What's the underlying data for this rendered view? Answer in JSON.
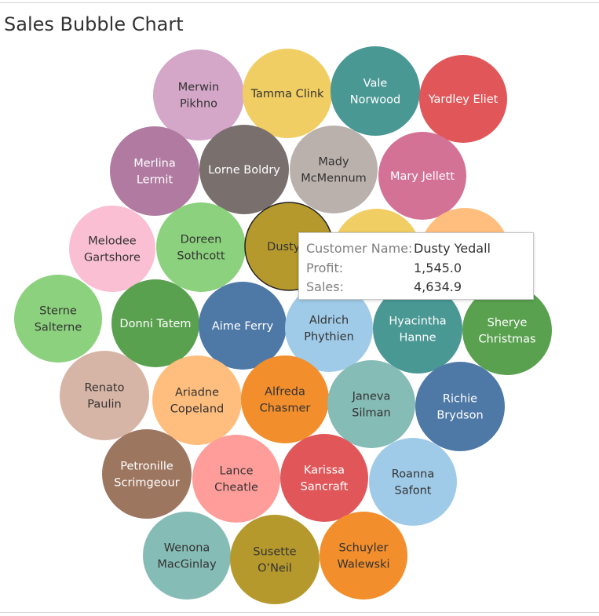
{
  "chart_data": {
    "type": "bubble",
    "title": "Sales Bubble Chart",
    "highlighted": "Dusty Yedall",
    "bubbles": [
      {
        "name": "Merwin Pikhno",
        "label": [
          "Merwin",
          "Pikhno"
        ],
        "color": "#d4a6c8",
        "text_color": "#333333"
      },
      {
        "name": "Tamma Clink",
        "label": [
          "Tamma Clink"
        ],
        "color": "#f1ce63",
        "text_color": "#333333"
      },
      {
        "name": "Vale Norwood",
        "label": [
          "Vale",
          "Norwood"
        ],
        "color": "#499894",
        "text_color": "#ffffff"
      },
      {
        "name": "Yardley Eliet",
        "label": [
          "Yardley Eliet"
        ],
        "color": "#e15759",
        "text_color": "#ffffff"
      },
      {
        "name": "Merlina Lermit",
        "label": [
          "Merlina",
          "Lermit"
        ],
        "color": "#b07aa1",
        "text_color": "#ffffff"
      },
      {
        "name": "Lorne Boldry",
        "label": [
          "Lorne Boldry"
        ],
        "color": "#79706e",
        "text_color": "#ffffff"
      },
      {
        "name": "Mady McMennum",
        "label": [
          "Mady",
          "McMennum"
        ],
        "color": "#bab0ac",
        "text_color": "#333333"
      },
      {
        "name": "Mary Jellett",
        "label": [
          "Mary Jellett"
        ],
        "color": "#d37295",
        "text_color": "#ffffff"
      },
      {
        "name": "Melodee Gartshore",
        "label": [
          "Melodee",
          "Gartshore"
        ],
        "color": "#fabfd2",
        "text_color": "#333333"
      },
      {
        "name": "Doreen Sothcott",
        "label": [
          "Doreen",
          "Sothcott"
        ],
        "color": "#8cd17d",
        "text_color": "#333333"
      },
      {
        "name": "Dusty Yedall",
        "label": [
          "Dusty Y"
        ],
        "color": "#b6992d",
        "text_color": "#333333"
      },
      {
        "name": "",
        "label": [],
        "color": "#f1ce63",
        "text_color": "#333333"
      },
      {
        "name": "",
        "label": [],
        "color": "#ffbe7d",
        "text_color": "#333333"
      },
      {
        "name": "Sterne Salterne",
        "label": [
          "Sterne",
          "Salterne"
        ],
        "color": "#8cd17d",
        "text_color": "#333333"
      },
      {
        "name": "Donni Tatem",
        "label": [
          "Donni Tatem"
        ],
        "color": "#59a14f",
        "text_color": "#ffffff"
      },
      {
        "name": "Aime Ferry",
        "label": [
          "Aime Ferry"
        ],
        "color": "#4e79a7",
        "text_color": "#ffffff"
      },
      {
        "name": "Aldrich Phythien",
        "label": [
          "Aldrich",
          "Phythien"
        ],
        "color": "#a0cbe8",
        "text_color": "#333333"
      },
      {
        "name": "Hyacintha Hanne",
        "label": [
          "Hyacintha",
          "Hanne"
        ],
        "color": "#499894",
        "text_color": "#ffffff"
      },
      {
        "name": "Sherye Christmas",
        "label": [
          "Sherye",
          "Christmas"
        ],
        "color": "#59a14f",
        "text_color": "#ffffff"
      },
      {
        "name": "Renato Paulin",
        "label": [
          "Renato",
          "Paulin"
        ],
        "color": "#d7b5a6",
        "text_color": "#333333"
      },
      {
        "name": "Ariadne Copeland",
        "label": [
          "Ariadne",
          "Copeland"
        ],
        "color": "#ffbe7d",
        "text_color": "#333333"
      },
      {
        "name": "Alfreda Chasmer",
        "label": [
          "Alfreda",
          "Chasmer"
        ],
        "color": "#f28e2b",
        "text_color": "#333333"
      },
      {
        "name": "Janeva Silman",
        "label": [
          "Janeva",
          "Silman"
        ],
        "color": "#86bcb6",
        "text_color": "#333333"
      },
      {
        "name": "Richie Brydson",
        "label": [
          "Richie",
          "Brydson"
        ],
        "color": "#4e79a7",
        "text_color": "#ffffff"
      },
      {
        "name": "Petronille Scrimgeour",
        "label": [
          "Petronille",
          "Scrimgeour"
        ],
        "color": "#9d7660",
        "text_color": "#ffffff"
      },
      {
        "name": "Lance Cheatle",
        "label": [
          "Lance",
          "Cheatle"
        ],
        "color": "#ff9d9a",
        "text_color": "#333333"
      },
      {
        "name": "Karissa Sancraft",
        "label": [
          "Karissa",
          "Sancraft"
        ],
        "color": "#e15759",
        "text_color": "#ffffff"
      },
      {
        "name": "Roanna Safont",
        "label": [
          "Roanna",
          "Safont"
        ],
        "color": "#a0cbe8",
        "text_color": "#333333"
      },
      {
        "name": "Wenona MacGinlay",
        "label": [
          "Wenona",
          "MacGinlay"
        ],
        "color": "#86bcb6",
        "text_color": "#333333"
      },
      {
        "name": "Susette O'Neil",
        "label": [
          "Susette",
          "O’Neil"
        ],
        "color": "#b6992d",
        "text_color": "#333333"
      },
      {
        "name": "Schuyler Walewski",
        "label": [
          "Schuyler",
          "Walewski"
        ],
        "color": "#f28e2b",
        "text_color": "#333333"
      }
    ],
    "tooltip": {
      "rows": [
        {
          "key": "Customer Name:",
          "value": "Dusty Yedall"
        },
        {
          "key": "Profit:",
          "value": "1,545.0"
        },
        {
          "key": "Sales:",
          "value": "4,634.9"
        }
      ]
    }
  }
}
